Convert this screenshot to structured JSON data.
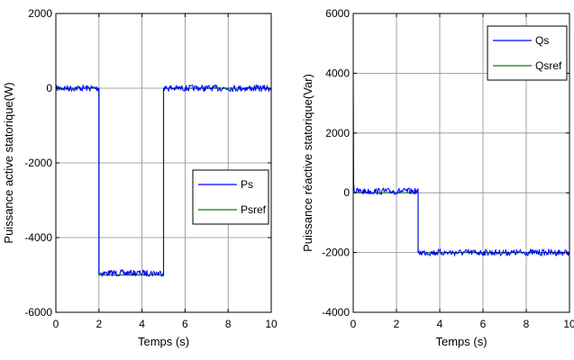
{
  "chart_data": [
    {
      "type": "line",
      "title": "",
      "xlabel": "Temps (s)",
      "ylabel": "Puissance active statorique(W)",
      "xlim": [
        0,
        10
      ],
      "ylim": [
        -6000,
        2000
      ],
      "xticks": [
        0,
        2,
        4,
        6,
        8,
        10
      ],
      "yticks": [
        -6000,
        -4000,
        -2000,
        0,
        2000
      ],
      "grid": true,
      "legend_position": "middle-right",
      "series": [
        {
          "name": "Ps",
          "color": "#0000ff",
          "noisy": true,
          "x": [
            0,
            2.0,
            2.0,
            2.0,
            5.0,
            5.0,
            10
          ],
          "y": [
            0,
            0,
            -2600,
            -4950,
            -4950,
            0,
            0
          ]
        },
        {
          "name": "Psref",
          "color": "#008000",
          "noisy": false,
          "x": [
            0,
            2.0,
            2.0,
            5.0,
            5.0,
            10
          ],
          "y": [
            0,
            0,
            -5000,
            -5000,
            0,
            0
          ]
        }
      ]
    },
    {
      "type": "line",
      "title": "",
      "xlabel": "Temps (s)",
      "ylabel": "Puissance réactive statorique(Var)",
      "xlim": [
        0,
        10
      ],
      "ylim": [
        -4000,
        6000
      ],
      "xticks": [
        0,
        2,
        4,
        6,
        8,
        10
      ],
      "yticks": [
        -4000,
        -2000,
        0,
        2000,
        4000,
        6000
      ],
      "grid": true,
      "legend_position": "top-right",
      "series": [
        {
          "name": "Qs",
          "color": "#0000ff",
          "noisy": true,
          "x": [
            0,
            0.02,
            0.05,
            3.0,
            3.0,
            10
          ],
          "y": [
            4200,
            300,
            50,
            50,
            -2000,
            -2000
          ]
        },
        {
          "name": "Qsref",
          "color": "#008000",
          "noisy": false,
          "x": [
            0,
            3.0,
            3.0,
            10
          ],
          "y": [
            0,
            0,
            -2000,
            -2000
          ]
        }
      ]
    }
  ]
}
